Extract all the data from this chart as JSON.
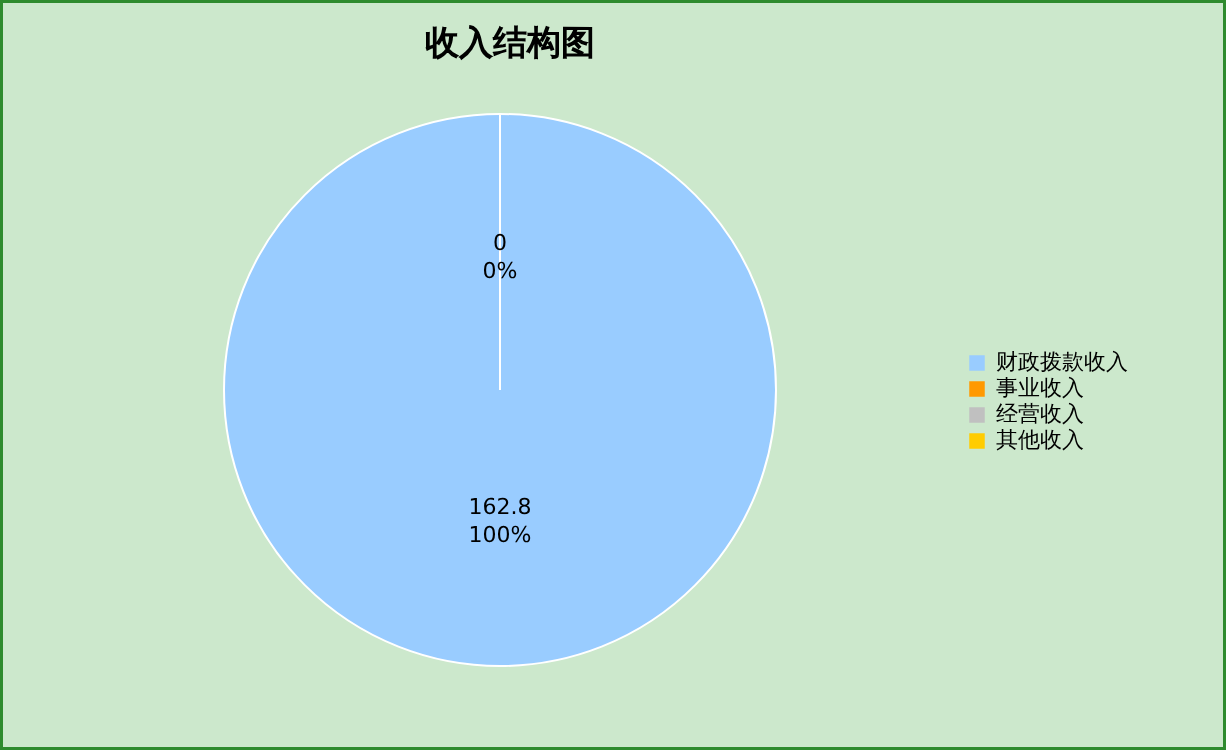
{
  "chart_data": {
    "type": "pie",
    "title": "收入结构图",
    "categories": [
      "财政拨款收入",
      "事业收入",
      "经营收入",
      "其他收入"
    ],
    "values": [
      162.8,
      0,
      0,
      0
    ],
    "colors": [
      "#99ccff",
      "#ff9900",
      "#c0c0c0",
      "#ffcc00"
    ],
    "value_labels": [
      "162.8",
      "0",
      null,
      null
    ],
    "annotations": [
      {
        "text": "100%",
        "x": "财政拨款收入"
      },
      {
        "text": "0%",
        "x": "事业收入"
      }
    ],
    "legend": "right"
  }
}
